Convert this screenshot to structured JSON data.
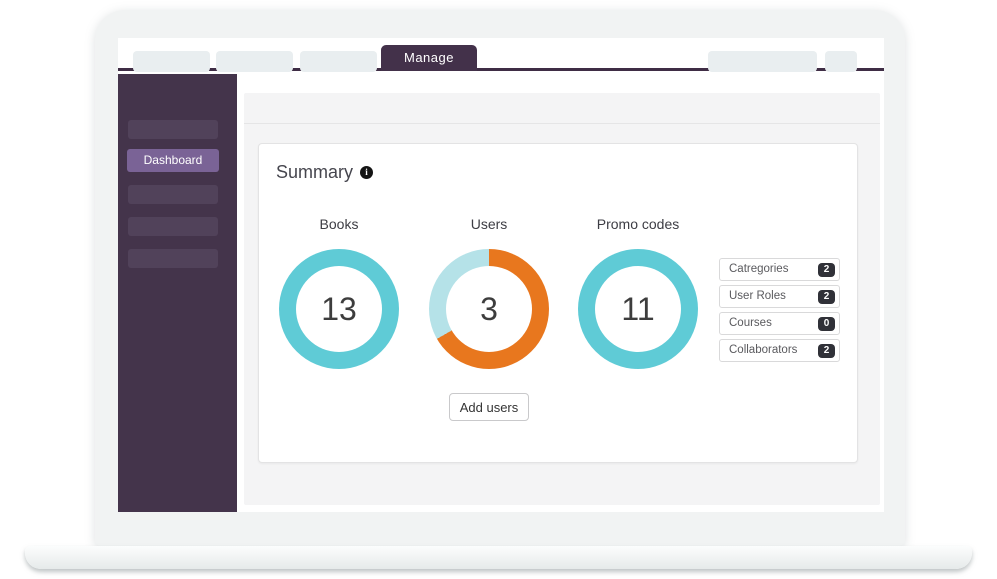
{
  "window": {
    "active_tab": "Manage"
  },
  "sidebar": {
    "active_item": "Dashboard"
  },
  "card": {
    "title": "Summary",
    "info_icon_glyph": "i"
  },
  "chart_data": [
    {
      "type": "donut",
      "title": "Books",
      "count": "13",
      "segments": [
        {
          "name": "books-total",
          "color": "#5fcbd6",
          "fraction": 1
        }
      ]
    },
    {
      "type": "donut",
      "title": "Users",
      "count": "3",
      "segments": [
        {
          "name": "users-segment-a",
          "color": "#e8771e",
          "fraction": 0.667
        },
        {
          "name": "users-segment-b",
          "color": "#b5e2e8",
          "fraction": 0.333
        }
      ]
    },
    {
      "type": "donut",
      "title": "Promo codes",
      "count": "11",
      "segments": [
        {
          "name": "promo-total",
          "color": "#5fcbd6",
          "fraction": 1
        }
      ]
    }
  ],
  "stats": {
    "items": [
      {
        "label": "Catregories",
        "count": "2"
      },
      {
        "label": "User Roles",
        "count": "2"
      },
      {
        "label": "Courses",
        "count": "0"
      },
      {
        "label": "Collaborators",
        "count": "2"
      }
    ]
  },
  "actions": {
    "add_users_label": "Add users"
  },
  "colors": {
    "accent_purple": "#7a6396",
    "sidebar_purple": "#44344b",
    "tab_purple": "#43314a",
    "teal": "#5fcbd6",
    "orange": "#e8771e",
    "light_blue": "#b5e2e8",
    "badge_dark": "#303138"
  }
}
